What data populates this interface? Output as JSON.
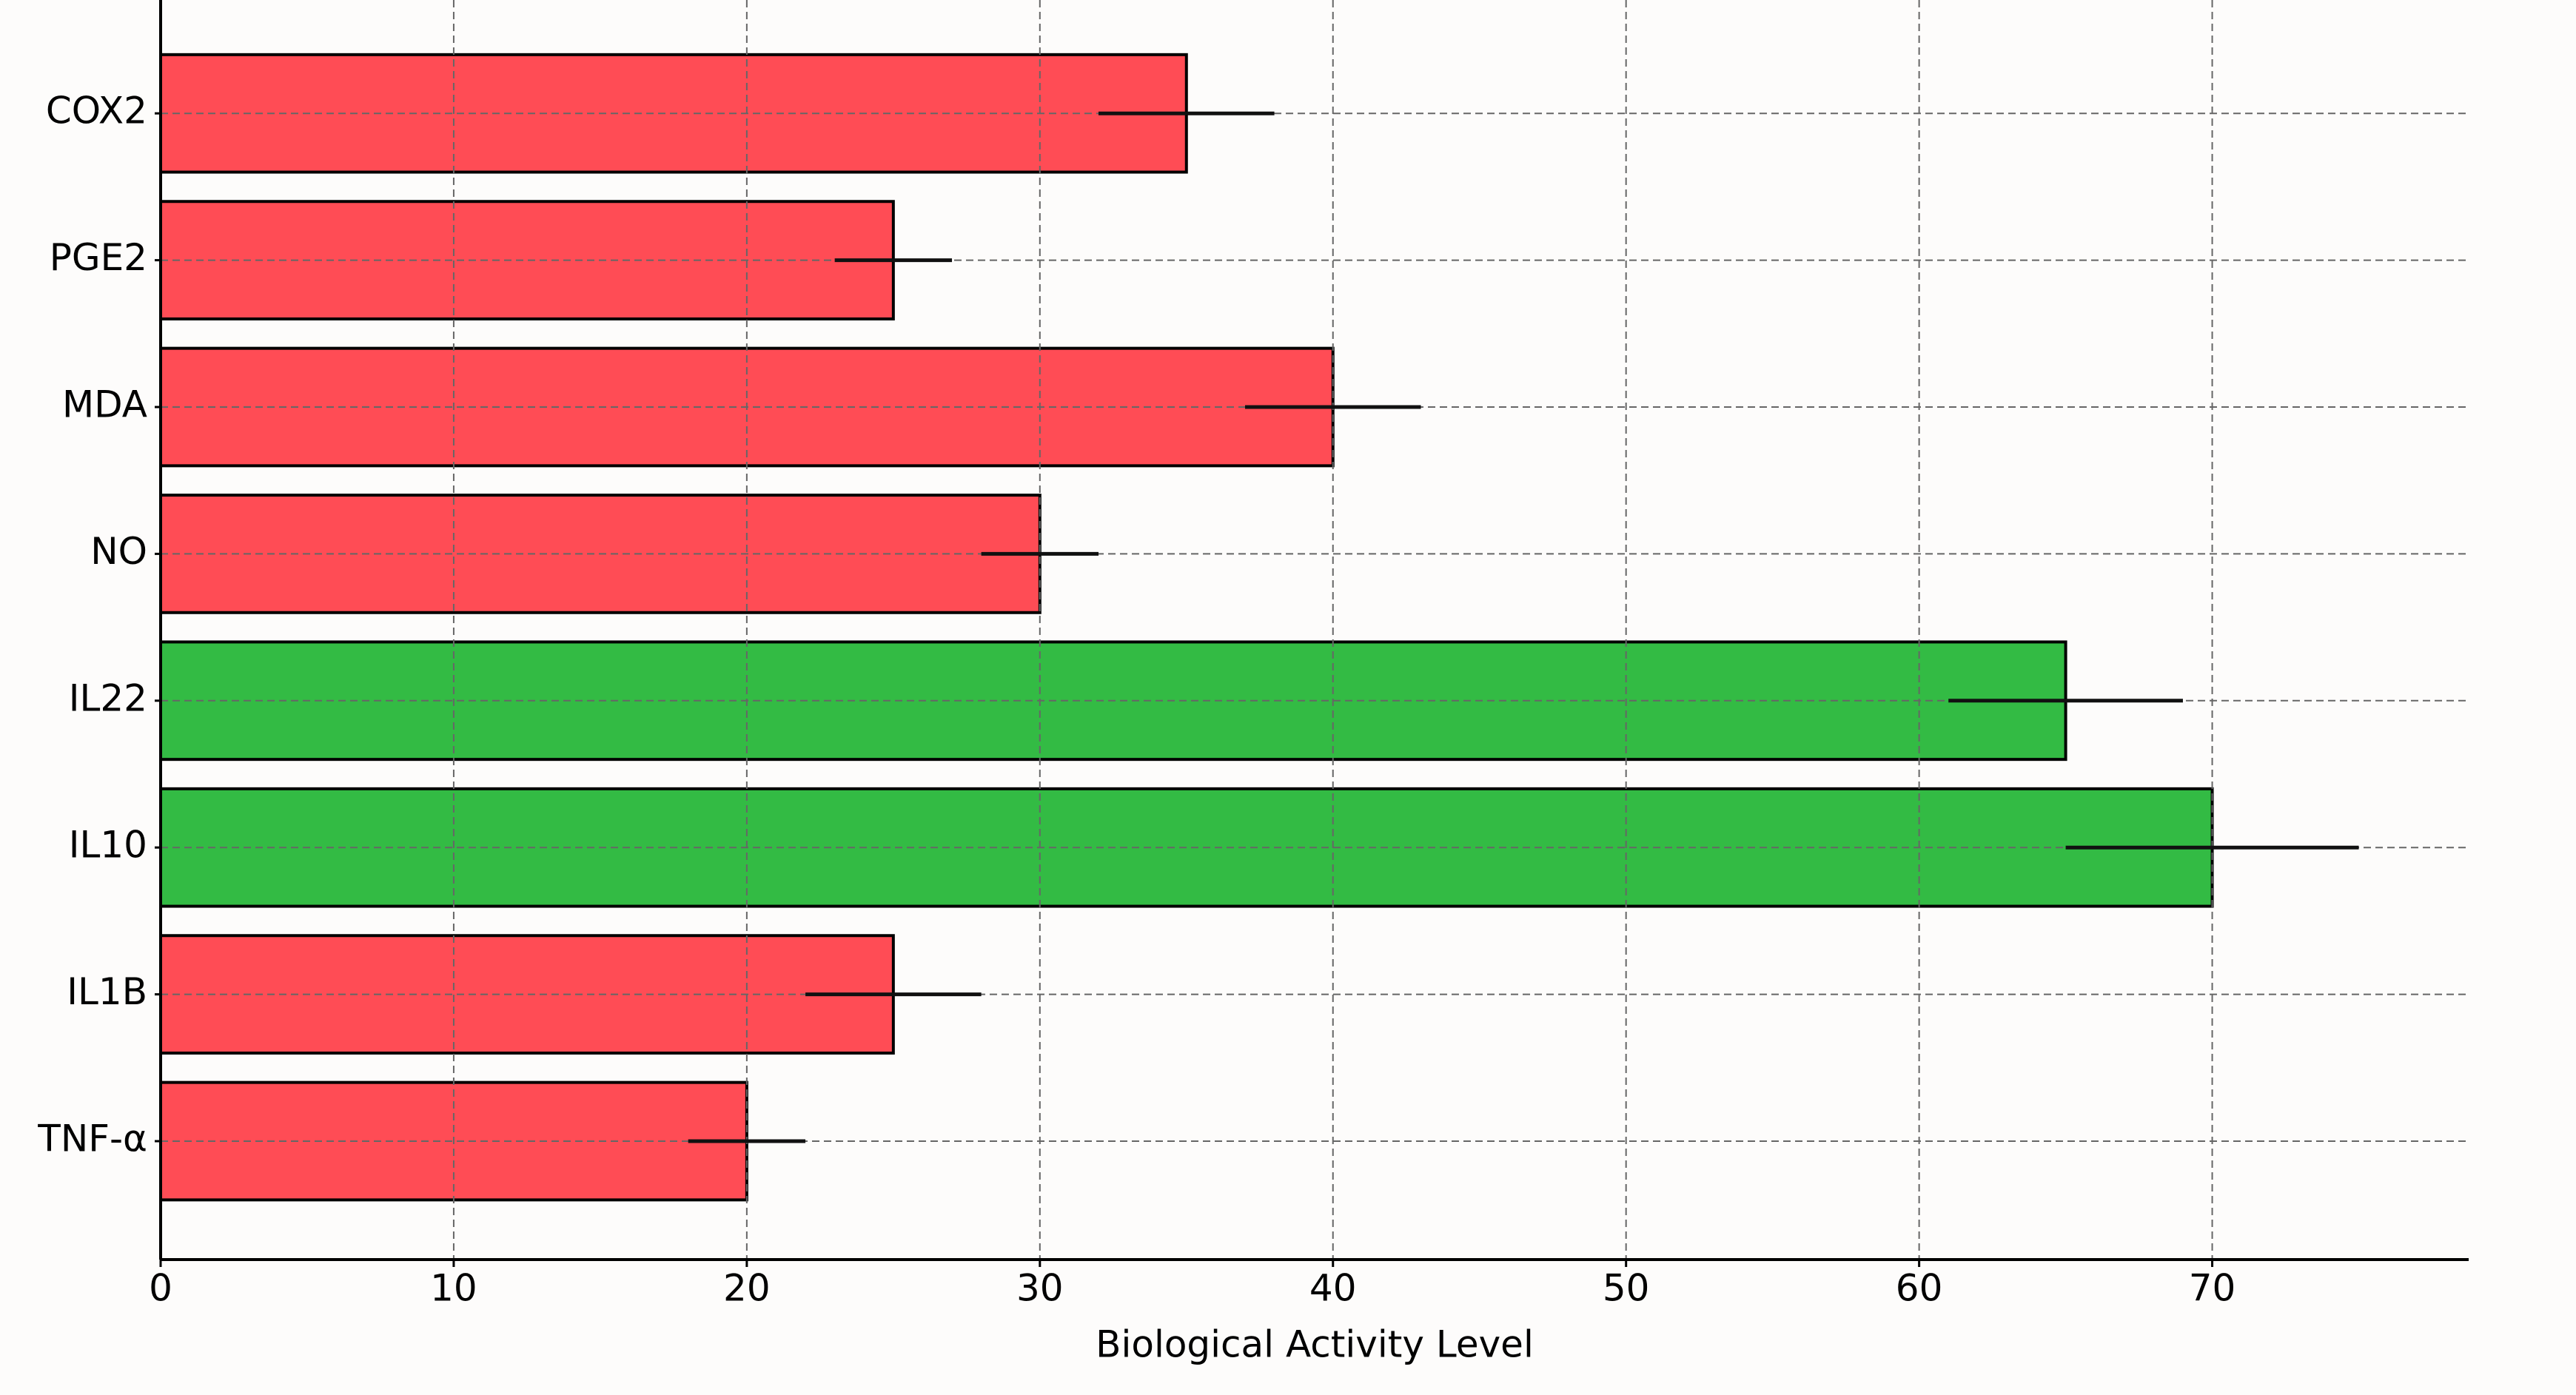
{
  "chart_data": {
    "type": "bar",
    "orientation": "horizontal",
    "xlabel": "Biological Activity Level",
    "categories": [
      "COX2",
      "PGE2",
      "MDA",
      "NO",
      "IL22",
      "IL10",
      "IL1B",
      "TNF-α"
    ],
    "values": [
      35,
      25,
      40,
      30,
      65,
      70,
      25,
      20
    ],
    "errors": [
      3,
      2,
      3,
      2,
      4,
      5,
      3,
      2
    ],
    "colors": [
      "#ff4c55",
      "#ff4c55",
      "#ff4c55",
      "#ff4c55",
      "#33bb44",
      "#33bb44",
      "#ff4c55",
      "#ff4c55"
    ],
    "xlim": [
      0,
      78.75
    ],
    "xticks": [
      0,
      10,
      20,
      30,
      40,
      50,
      60,
      70
    ],
    "grid": true
  }
}
